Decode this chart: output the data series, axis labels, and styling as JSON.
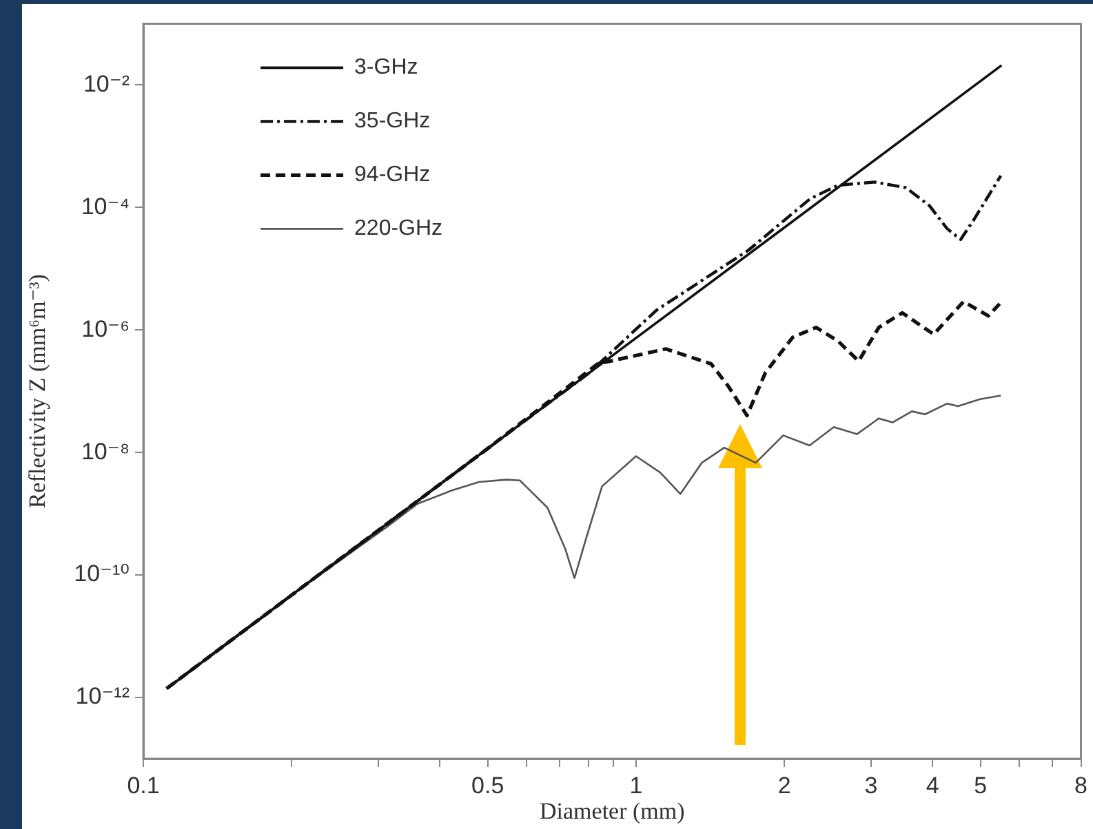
{
  "chart_data": {
    "type": "line",
    "xlabel": "Diameter (mm)",
    "ylabel": "Reflectivity Z (mm⁶m⁻³)",
    "log": "xy",
    "grid": false,
    "legend": "top left",
    "marker": "none",
    "xlim": [
      0.1,
      8
    ],
    "ylim": [
      1e-13,
      0.1
    ],
    "xticks": [
      0.1,
      {
        "value": 0.2,
        "label": null
      },
      {
        "value": 0.3,
        "label": null
      },
      {
        "value": 0.4,
        "label": null
      },
      0.5,
      {
        "value": 0.6,
        "label": null
      },
      {
        "value": 0.7,
        "label": null
      },
      {
        "value": 0.8,
        "label": null
      },
      {
        "value": 0.9,
        "label": null
      },
      1,
      2,
      3,
      4,
      5,
      {
        "value": 6,
        "label": null
      },
      {
        "value": 7,
        "label": null
      },
      8
    ],
    "yticks": [
      {
        "value": 1e-12,
        "label": "10⁻¹²"
      },
      {
        "value": 1e-10,
        "label": "10⁻¹⁰"
      },
      {
        "value": 1e-08,
        "label": "10⁻⁸"
      },
      {
        "value": 1e-06,
        "label": "10⁻⁶"
      },
      {
        "value": 0.0001,
        "label": "10⁻⁴"
      },
      {
        "value": 0.01,
        "label": "10⁻²"
      }
    ],
    "series": [
      {
        "name": "3-GHz",
        "color": "#111111",
        "line_style": "solid",
        "x": [
          0.1115,
          0.2,
          0.5,
          1,
          2,
          5.52
        ],
        "values": [
          1.4e-12,
          4.7e-11,
          1.16e-08,
          7.4e-07,
          4.7e-05,
          0.0209
        ]
      },
      {
        "name": "35-GHz",
        "color": "#111111",
        "line_style": "dashdot",
        "x": [
          0.1115,
          0.2,
          0.5,
          0.8,
          1.1,
          1.69,
          2.26,
          2.57,
          3.05,
          3.53,
          3.94,
          4.28,
          4.56,
          4.86,
          5.5
        ],
        "values": [
          1.4e-12,
          4.7e-11,
          1.16e-08,
          1.94e-07,
          2.1e-06,
          2e-05,
          0.00014,
          0.00023,
          0.00026,
          0.00021,
          0.000107,
          4.5e-05,
          3e-05,
          6.5e-05,
          0.00033
        ]
      },
      {
        "name": "94-GHz",
        "color": "#111111",
        "line_style": "dashed",
        "x": [
          0.1115,
          0.2,
          0.5,
          0.836,
          1.15,
          1.42,
          1.54,
          1.68,
          1.83,
          2.08,
          2.32,
          2.57,
          2.83,
          3.11,
          3.47,
          4.02,
          4.62,
          5.19,
          5.5
        ],
        "values": [
          1.4e-12,
          4.7e-11,
          1.16e-08,
          2.8e-07,
          4.9e-07,
          2.8e-07,
          1.2e-07,
          4e-08,
          2e-07,
          7.6e-07,
          1.1e-06,
          6.6e-07,
          3.1e-07,
          1.1e-06,
          1.9e-06,
          8.5e-07,
          2.9e-06,
          1.7e-06,
          2.8e-06
        ]
      },
      {
        "name": "220-GHz",
        "color": "#555555",
        "line_style": "solid",
        "x": [
          0.1115,
          0.2,
          0.313,
          0.36,
          0.423,
          0.48,
          0.546,
          0.581,
          0.661,
          0.718,
          0.75,
          0.79,
          0.853,
          1.0,
          1.12,
          1.23,
          1.36,
          1.51,
          1.75,
          1.99,
          2.25,
          2.52,
          2.81,
          3.11,
          3.32,
          3.63,
          3.86,
          4.28,
          4.5,
          4.99,
          5.5
        ],
        "values": [
          1.4e-12,
          4.7e-11,
          6.2e-10,
          1.45e-09,
          2.4e-09,
          3.3e-09,
          3.6e-09,
          3.5e-09,
          1.26e-09,
          2.7e-10,
          8.9e-11,
          3.7e-10,
          2.8e-09,
          8.7e-09,
          4.7e-09,
          2.1e-09,
          6.8e-09,
          1.2e-08,
          6.8e-09,
          1.9e-08,
          1.3e-08,
          2.6e-08,
          2e-08,
          3.6e-08,
          3.1e-08,
          4.7e-08,
          4.2e-08,
          6.3e-08,
          5.7e-08,
          7.4e-08,
          8.5e-08
        ]
      }
    ]
  }
}
